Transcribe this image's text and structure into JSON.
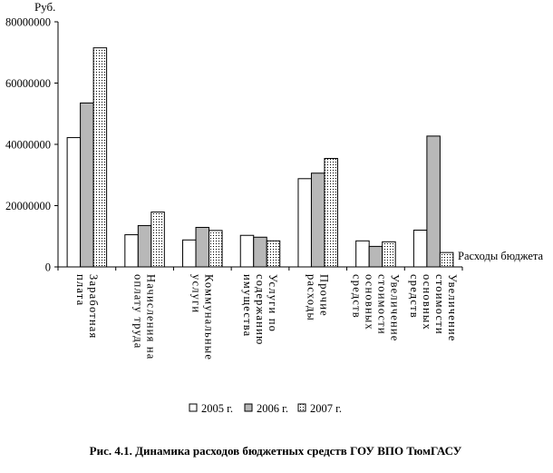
{
  "chart_data": {
    "type": "bar",
    "y_unit_label": "Руб.",
    "x_axis_label": "Расходы бюджета",
    "ylim": [
      0,
      80000000
    ],
    "yticks": [
      0,
      20000000,
      40000000,
      60000000,
      80000000
    ],
    "ytick_labels": [
      "0",
      "20000000",
      "40000000",
      "60000000",
      "80000000"
    ],
    "grid": false,
    "legend_position": "bottom",
    "categories": [
      [
        "Заработная",
        "плата"
      ],
      [
        "Начисления на",
        "оплату труда"
      ],
      [
        "Коммунальные",
        "услуги"
      ],
      [
        "Услуги по",
        "содержанию",
        "имущества"
      ],
      [
        "Прочие",
        "расходы"
      ],
      [
        "Увеличение",
        "стоимости",
        "основных",
        "средств"
      ],
      [
        "Увеличение",
        "стоимости",
        "основных",
        "средств"
      ]
    ],
    "series": [
      {
        "name": "2005 г.",
        "fill": "#ffffff",
        "values": [
          42200000,
          10500000,
          8800000,
          10300000,
          28800000,
          8500000,
          12000000
        ]
      },
      {
        "name": "2006 г.",
        "fill": "#b8b8b8",
        "values": [
          53500000,
          13500000,
          12900000,
          9700000,
          30600000,
          6700000,
          42700000
        ]
      },
      {
        "name": "2007 г.",
        "fill": "dots",
        "values": [
          71500000,
          17900000,
          11900000,
          8500000,
          35400000,
          8200000,
          4700000
        ]
      }
    ]
  },
  "caption": "Рис. 4.1. Динамика расходов бюджетных средств ГОУ ВПО ТюмГАСУ"
}
